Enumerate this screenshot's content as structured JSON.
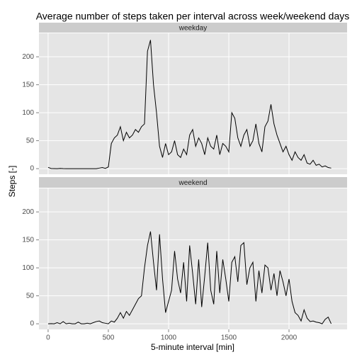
{
  "chart_data": {
    "type": "line",
    "title": "Average number of steps taken per interval across week/weekend days",
    "x_label": "5-minute interval [min]",
    "y_label": "Steps [-]",
    "x": [
      0,
      25,
      50,
      75,
      100,
      125,
      150,
      175,
      200,
      225,
      250,
      275,
      300,
      325,
      350,
      375,
      400,
      425,
      450,
      475,
      500,
      525,
      550,
      575,
      600,
      625,
      650,
      675,
      700,
      725,
      750,
      775,
      800,
      825,
      850,
      875,
      900,
      925,
      950,
      975,
      1000,
      1025,
      1050,
      1075,
      1100,
      1125,
      1150,
      1175,
      1200,
      1225,
      1250,
      1275,
      1300,
      1325,
      1350,
      1375,
      1400,
      1425,
      1450,
      1475,
      1500,
      1525,
      1550,
      1575,
      1600,
      1625,
      1650,
      1675,
      1700,
      1725,
      1750,
      1775,
      1800,
      1825,
      1850,
      1875,
      1900,
      1925,
      1950,
      1975,
      2000,
      2025,
      2050,
      2075,
      2100,
      2125,
      2150,
      2175,
      2200,
      2225,
      2250,
      2275,
      2300,
      2325,
      2350
    ],
    "series": [
      {
        "name": "weekday",
        "color": "#000000",
        "values": [
          2.3,
          0.3,
          0.1,
          0,
          0.4,
          0.1,
          0,
          0,
          0,
          0,
          0,
          0,
          0,
          0,
          0,
          0,
          0,
          1,
          2,
          0.5,
          3,
          45,
          55,
          60,
          75,
          50,
          65,
          55,
          60,
          70,
          65,
          75,
          80,
          210,
          230,
          150,
          100,
          40,
          20,
          45,
          25,
          30,
          50,
          25,
          20,
          35,
          25,
          60,
          70,
          40,
          55,
          45,
          25,
          55,
          40,
          35,
          60,
          25,
          45,
          40,
          30,
          100,
          90,
          55,
          40,
          60,
          70,
          40,
          50,
          80,
          45,
          30,
          75,
          85,
          115,
          80,
          60,
          45,
          30,
          40,
          25,
          15,
          30,
          20,
          15,
          25,
          10,
          8,
          15,
          6,
          8,
          3,
          5,
          2,
          1
        ]
      },
      {
        "name": "weekend",
        "color": "#000000",
        "values": [
          0,
          0.3,
          0,
          2,
          0,
          4,
          0,
          1,
          0,
          0,
          3,
          0,
          0,
          1,
          0,
          2,
          4,
          5,
          2,
          1,
          0,
          5,
          3,
          10,
          20,
          10,
          22,
          15,
          25,
          35,
          45,
          50,
          100,
          140,
          165,
          110,
          60,
          160,
          80,
          20,
          40,
          60,
          130,
          80,
          55,
          110,
          40,
          140,
          90,
          35,
          115,
          30,
          85,
          145,
          60,
          35,
          130,
          55,
          115,
          80,
          40,
          110,
          120,
          75,
          140,
          145,
          70,
          100,
          110,
          40,
          95,
          55,
          105,
          100,
          60,
          90,
          50,
          95,
          75,
          50,
          80,
          40,
          20,
          15,
          5,
          25,
          10,
          4,
          5,
          3,
          2,
          0,
          8,
          12,
          0
        ]
      }
    ],
    "xlim": [
      -76,
      2482
    ],
    "xticks": [
      0,
      500,
      1000,
      1500,
      2000
    ],
    "ylim": [
      -10,
      242
    ],
    "yticks": [
      0,
      50,
      100,
      150,
      200
    ],
    "grid": true
  }
}
